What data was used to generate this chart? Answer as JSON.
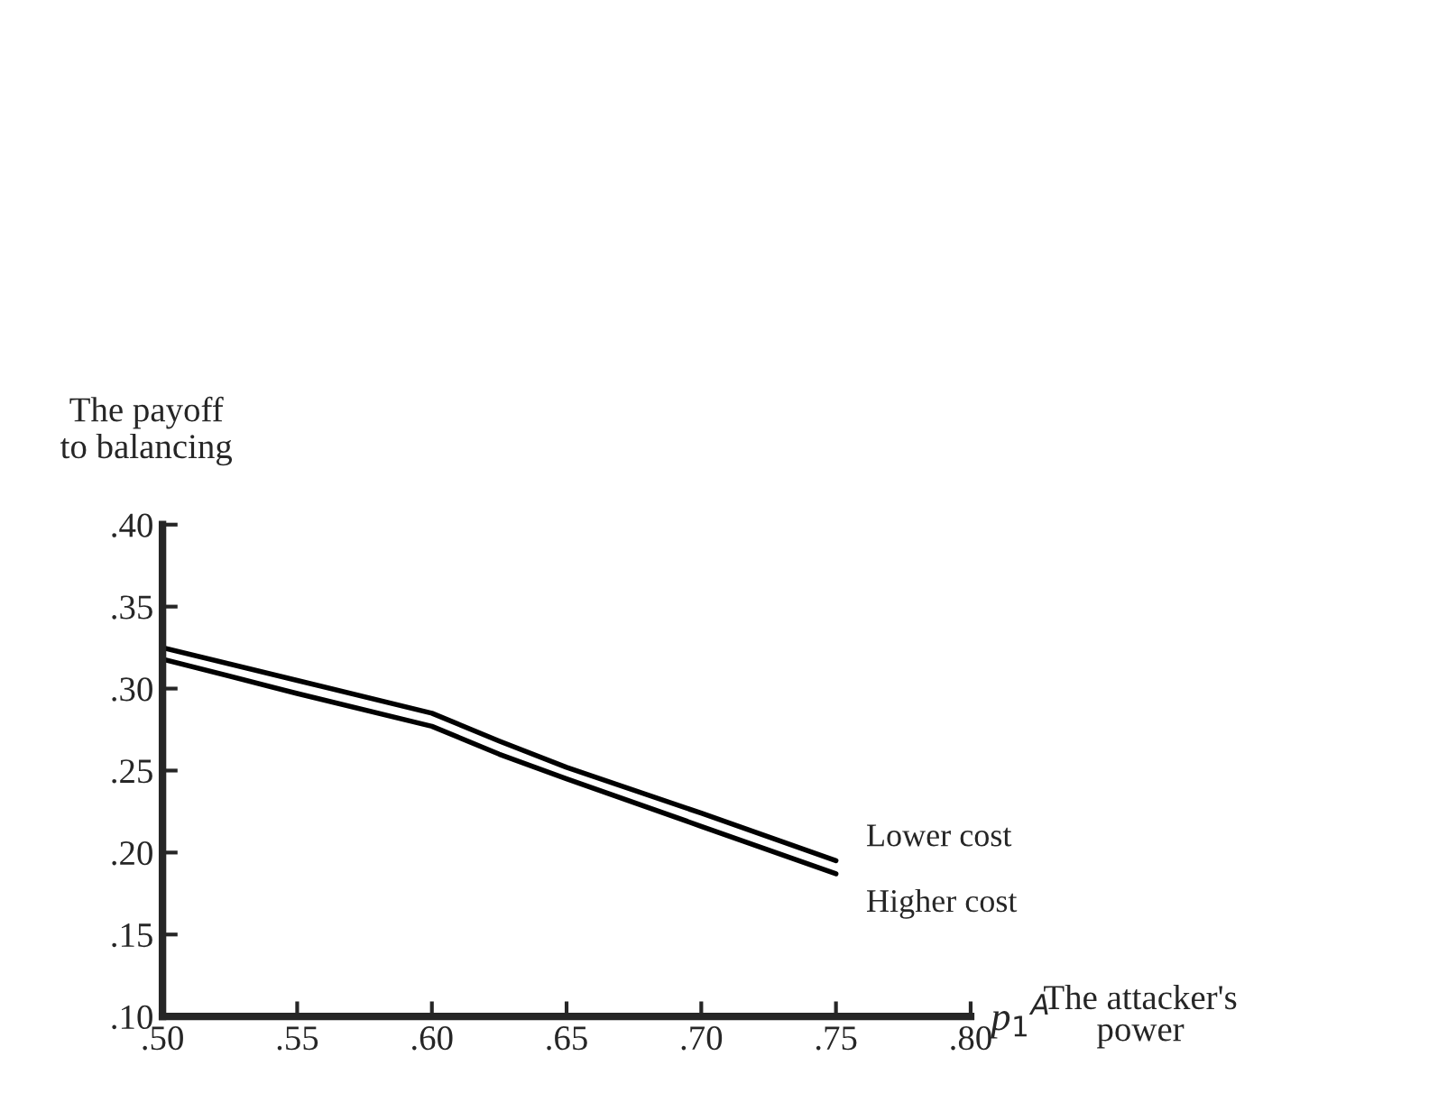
{
  "chart_data": {
    "type": "line",
    "ylabel": "The payoff\nto balancing",
    "xlabel": "p$_{1}$$^{A}$",
    "annotations": [
      "The attacker's\npower"
    ],
    "x": [
      0.5,
      0.55,
      0.6,
      0.625,
      0.65,
      0.7,
      0.75
    ],
    "series": [
      {
        "name": "Lower cost",
        "color": "#000000",
        "values": [
          0.325,
          0.305,
          0.285,
          0.268,
          0.252,
          0.224,
          0.195
        ]
      },
      {
        "name": "Higher cost",
        "color": "#000000",
        "values": [
          0.318,
          0.297,
          0.277,
          0.26,
          0.245,
          0.216,
          0.187
        ]
      }
    ],
    "xlim": [
      0.5,
      0.8
    ],
    "xticks": [
      {
        "value": 0.5,
        "label": ".50"
      },
      {
        "value": 0.55,
        "label": ".55"
      },
      {
        "value": 0.6,
        "label": ".60"
      },
      {
        "value": 0.65,
        "label": ".65"
      },
      {
        "value": 0.7,
        "label": ".70"
      },
      {
        "value": 0.75,
        "label": ".75"
      },
      {
        "value": 0.8,
        "label": ".80"
      }
    ],
    "ylim": [
      0.1,
      0.4
    ],
    "yticks": [
      {
        "value": 0.1,
        "label": ".10"
      },
      {
        "value": 0.15,
        "label": ".15"
      },
      {
        "value": 0.2,
        "label": ".20"
      },
      {
        "value": 0.25,
        "label": ".25"
      },
      {
        "value": 0.3,
        "label": ".30"
      },
      {
        "value": 0.35,
        "label": ".35"
      },
      {
        "value": 0.4,
        "label": ".40"
      }
    ],
    "grid": false,
    "legend": false,
    "marker": "none",
    "line_style": "solid"
  }
}
